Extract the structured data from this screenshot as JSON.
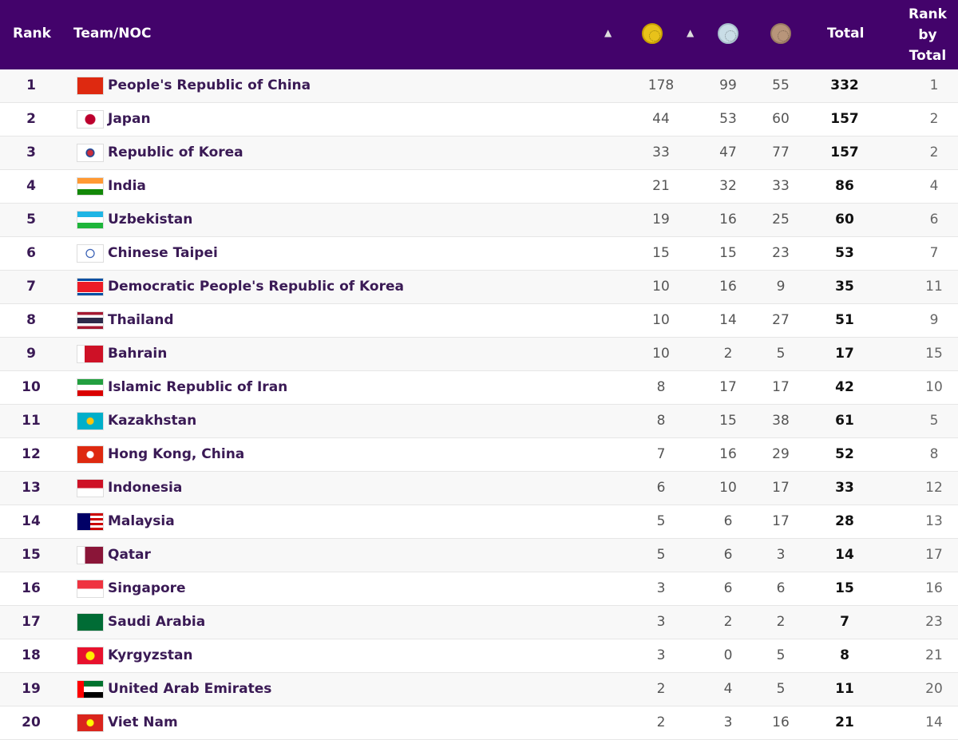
{
  "header": {
    "rank": "Rank",
    "team": "Team/NOC",
    "total": "Total",
    "rank_by_total_1": "Rank",
    "rank_by_total_2": "by",
    "rank_by_total_3": "Total",
    "gold_icon": "gold-medal",
    "silver_icon": "silver-medal",
    "bronze_icon": "bronze-medal",
    "sort_icon": "sort-arrows",
    "color": "#43036b"
  },
  "rows": [
    {
      "rank": "1",
      "name": "People's Republic of China",
      "gold": "178",
      "silver": "99",
      "bronze": "55",
      "total": "332",
      "rank_by_total": "1",
      "flag": "linear-gradient(#de2910,#de2910)"
    },
    {
      "rank": "2",
      "name": "Japan",
      "gold": "44",
      "silver": "53",
      "bronze": "60",
      "total": "157",
      "rank_by_total": "2",
      "flag": "radial-gradient(circle,#bc002d 6px,#fff 7px)"
    },
    {
      "rank": "3",
      "name": "Republic of Korea",
      "gold": "33",
      "silver": "47",
      "bronze": "77",
      "total": "157",
      "rank_by_total": "2",
      "flag": "radial-gradient(circle,#cd2e3a 3px,#0047a0 5px,#fff 6px)"
    },
    {
      "rank": "4",
      "name": "India",
      "gold": "21",
      "silver": "32",
      "bronze": "33",
      "total": "86",
      "rank_by_total": "4",
      "flag": "linear-gradient(#ff9933 33%,#fff 33% 66%,#138808 66%)"
    },
    {
      "rank": "5",
      "name": "Uzbekistan",
      "gold": "19",
      "silver": "16",
      "bronze": "25",
      "total": "60",
      "rank_by_total": "6",
      "flag": "linear-gradient(#1eb5e5 33%,#fff 33% 66%,#1eb53a 66%)"
    },
    {
      "rank": "6",
      "name": "Chinese Taipei",
      "gold": "15",
      "silver": "15",
      "bronze": "23",
      "total": "53",
      "rank_by_total": "7",
      "flag": "radial-gradient(circle,#fff 4px,#0033a0 5px,#fff 6px)"
    },
    {
      "rank": "7",
      "name": "Democratic People's Republic of Korea",
      "gold": "10",
      "silver": "16",
      "bronze": "9",
      "total": "35",
      "rank_by_total": "11",
      "flag": "linear-gradient(#024fa2 15%,#fff 15% 20%,#ed1c27 20% 80%,#fff 80% 85%,#024fa2 85%)"
    },
    {
      "rank": "8",
      "name": "Thailand",
      "gold": "10",
      "silver": "14",
      "bronze": "27",
      "total": "51",
      "rank_by_total": "9",
      "flag": "linear-gradient(#a51931 17%,#fff 17% 33%,#2d2a4a 33% 67%,#fff 67% 83%,#a51931 83%)"
    },
    {
      "rank": "9",
      "name": "Bahrain",
      "gold": "10",
      "silver": "2",
      "bronze": "5",
      "total": "17",
      "rank_by_total": "15",
      "flag": "linear-gradient(90deg,#fff 28%,#ce1126 28%)"
    },
    {
      "rank": "10",
      "name": "Islamic Republic of Iran",
      "gold": "8",
      "silver": "17",
      "bronze": "17",
      "total": "42",
      "rank_by_total": "10",
      "flag": "linear-gradient(#239f40 33%,#fff 33% 66%,#da0000 66%)"
    },
    {
      "rank": "11",
      "name": "Kazakhstan",
      "gold": "8",
      "silver": "15",
      "bronze": "38",
      "total": "61",
      "rank_by_total": "5",
      "flag": "radial-gradient(circle,#fec50c 4px,#00afca 5px)"
    },
    {
      "rank": "12",
      "name": "Hong Kong, China",
      "gold": "7",
      "silver": "16",
      "bronze": "29",
      "total": "52",
      "rank_by_total": "8",
      "flag": "radial-gradient(circle,#fff 4px,#de2910 5px)"
    },
    {
      "rank": "13",
      "name": "Indonesia",
      "gold": "6",
      "silver": "10",
      "bronze": "17",
      "total": "33",
      "rank_by_total": "12",
      "flag": "linear-gradient(#ce1126 50%,#fff 50%)"
    },
    {
      "rank": "14",
      "name": "Malaysia",
      "gold": "5",
      "silver": "6",
      "bronze": "17",
      "total": "28",
      "rank_by_total": "13",
      "flag": "linear-gradient(90deg,#010066 50%,transparent 50%),repeating-linear-gradient(#cc0001 0 3px,#fff 3px 6px)"
    },
    {
      "rank": "15",
      "name": "Qatar",
      "gold": "5",
      "silver": "6",
      "bronze": "3",
      "total": "14",
      "rank_by_total": "17",
      "flag": "linear-gradient(90deg,#fff 30%,#8a1538 30%)"
    },
    {
      "rank": "16",
      "name": "Singapore",
      "gold": "3",
      "silver": "6",
      "bronze": "6",
      "total": "15",
      "rank_by_total": "16",
      "flag": "linear-gradient(#ef3340 50%,#fff 50%)"
    },
    {
      "rank": "17",
      "name": "Saudi Arabia",
      "gold": "3",
      "silver": "2",
      "bronze": "2",
      "total": "7",
      "rank_by_total": "23",
      "flag": "linear-gradient(#006c35,#006c35)"
    },
    {
      "rank": "18",
      "name": "Kyrgyzstan",
      "gold": "3",
      "silver": "0",
      "bronze": "5",
      "total": "8",
      "rank_by_total": "21",
      "flag": "radial-gradient(circle,#ffef00 5px,#e8112d 6px)"
    },
    {
      "rank": "19",
      "name": "United Arab Emirates",
      "gold": "2",
      "silver": "4",
      "bronze": "5",
      "total": "11",
      "rank_by_total": "20",
      "flag": "linear-gradient(90deg,#ff0000 25%,transparent 25%),linear-gradient(#00732f 33%,#fff 33% 66%,#000 66%)"
    },
    {
      "rank": "20",
      "name": "Viet Nam",
      "gold": "2",
      "silver": "3",
      "bronze": "16",
      "total": "21",
      "rank_by_total": "14",
      "flag": "radial-gradient(circle,#ffff00 4px,#da251d 5px)"
    }
  ]
}
